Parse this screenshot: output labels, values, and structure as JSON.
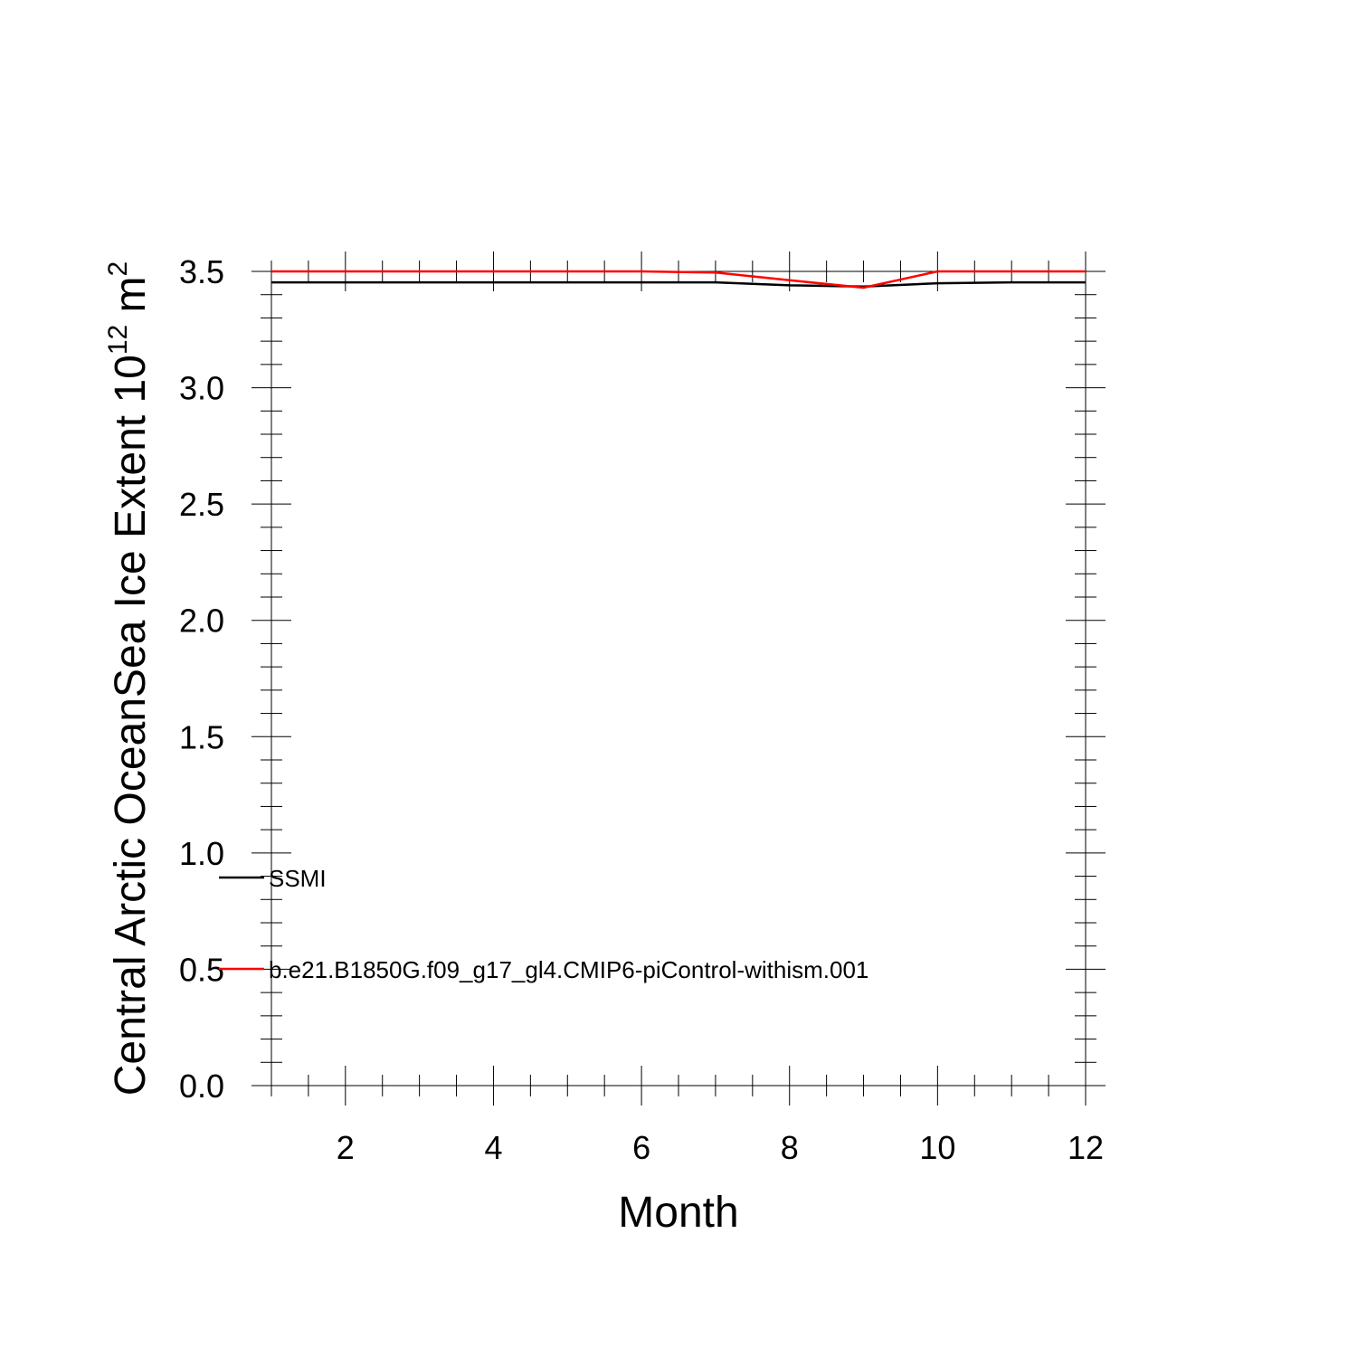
{
  "chart_data": {
    "type": "line",
    "title": "",
    "xlabel": "Month",
    "ylabel": {
      "prefix": "Central Arctic OceanSea Ice Extent 10",
      "exponent1": "12",
      "unit": " m",
      "exponent2": "2"
    },
    "xlim": [
      1,
      12
    ],
    "ylim": [
      0,
      3.5
    ],
    "xticks": [
      2,
      4,
      6,
      8,
      10,
      12
    ],
    "xtick_labels": [
      "2",
      "4",
      "6",
      "8",
      "10",
      "12"
    ],
    "yticks": [
      0,
      0.5,
      1,
      1.5,
      2,
      2.5,
      3,
      3.5
    ],
    "ytick_labels": [
      "0.0",
      "0.5",
      "1.0",
      "1.5",
      "2.0",
      "2.5",
      "3.0",
      "3.5"
    ],
    "x": [
      1,
      2,
      3,
      4,
      5,
      6,
      7,
      8,
      9,
      10,
      11,
      12
    ],
    "series": [
      {
        "name": "SSMI",
        "color": "#000000",
        "values": [
          3.453,
          3.453,
          3.453,
          3.453,
          3.453,
          3.453,
          3.453,
          3.44,
          3.435,
          3.449,
          3.453,
          3.453
        ]
      },
      {
        "name": "b.e21.B1850G.f09_g17_gl4.CMIP6-piControl-withism.001",
        "color": "#ff0000",
        "values": [
          3.5,
          3.5,
          3.5,
          3.5,
          3.5,
          3.5,
          3.495,
          3.462,
          3.43,
          3.5,
          3.5,
          3.5
        ]
      }
    ],
    "grid": false,
    "legend_position": "inside-bottom-left"
  }
}
